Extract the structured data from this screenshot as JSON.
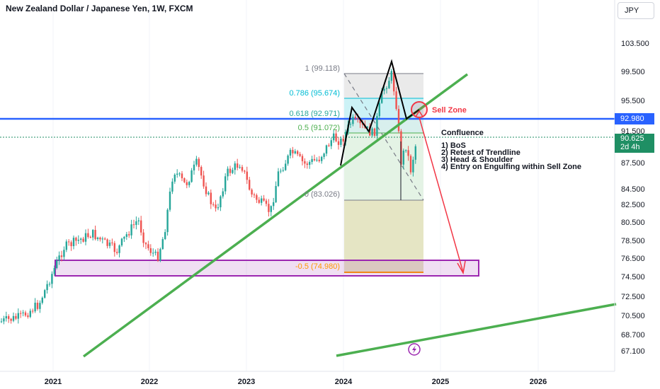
{
  "header": {
    "title": "New Zealand Dollar / Japanese Yen, 1W, FXCM",
    "currency": "JPY"
  },
  "chart_data": {
    "type": "candlestick",
    "symbol": "NZDJPY",
    "timeframe": "1W",
    "y_ticks": [
      "103.500",
      "99.500",
      "95.500",
      "91.500",
      "87.500",
      "84.500",
      "82.500",
      "80.500",
      "78.500",
      "76.500",
      "74.500",
      "72.500",
      "70.500",
      "68.700",
      "67.100"
    ],
    "x_ticks": [
      "2021",
      "2022",
      "2023",
      "2024",
      "2025",
      "2026"
    ],
    "price_line": {
      "label": "92.980",
      "value": 92.98,
      "color": "#2962ff"
    },
    "last_price": {
      "label": "90.625",
      "countdown": "2d 4h",
      "value": 90.625,
      "color": "#1f8f64"
    },
    "fib_levels": [
      {
        "label": "1 (99.118)",
        "value": 99.118,
        "color": "#787b86"
      },
      {
        "label": "0.786 (95.674)",
        "value": 95.674,
        "color": "#00bcd4"
      },
      {
        "label": "0.618 (92.971)",
        "value": 92.971,
        "color": "#26a69a"
      },
      {
        "label": "0.5 (91.072)",
        "value": 91.072,
        "color": "#4caf50"
      },
      {
        "label": "0 (83.026)",
        "value": 83.026,
        "color": "#787b86"
      },
      {
        "label": "-0.5 (74.980)",
        "value": 74.98,
        "color": "#ff9800"
      }
    ],
    "annotations": {
      "sell_zone": "Sell Zone",
      "confluence_title": "Confluence",
      "confluence_items": [
        "1) BoS",
        "2) Retest of Trendline",
        "3) Head & Shoulder",
        "4) Entry on Engulfing within Sell Zone"
      ]
    },
    "colors": {
      "up": "#26a69a",
      "down": "#ef5350",
      "trendline": "#4caf50",
      "zone": "#9c27b0",
      "arrow": "#f23645"
    }
  }
}
